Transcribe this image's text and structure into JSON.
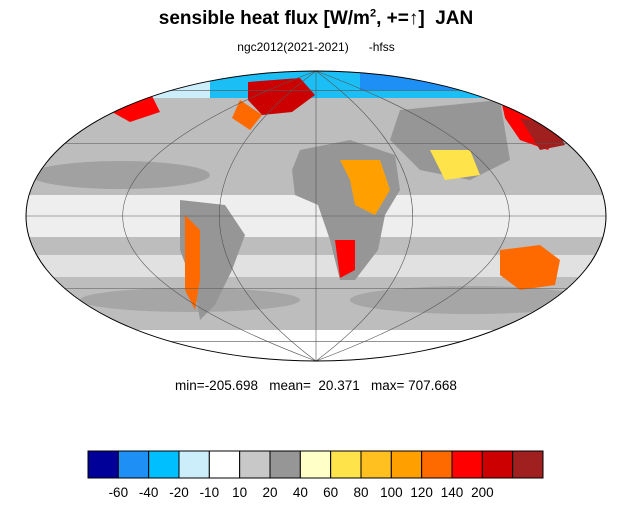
{
  "title": {
    "main": "sensible heat flux [W/m",
    "superscript": "2",
    "suffix": ", +=",
    "arrow": "↑",
    "close": "]",
    "month": "JAN"
  },
  "subtitle": {
    "case": "ngc2012(2021-2021)",
    "variable": "-hfss"
  },
  "stats": {
    "min_label": "min=",
    "min": "-205.698",
    "mean_label": "mean=",
    "mean": "20.371",
    "max_label": "max=",
    "max": "707.668"
  },
  "map": {
    "projection": "mollweide",
    "ocean_fill": "#b8b8b8",
    "gridline_color": "#555555",
    "coastline_color": "#000000"
  },
  "colorbar": {
    "colors": [
      "#000099",
      "#1e8ff5",
      "#00bfff",
      "#cceefa",
      "#ffffff",
      "#c8c8c8",
      "#969696",
      "#ffffc8",
      "#ffe34a",
      "#ffc020",
      "#ffa000",
      "#ff6a00",
      "#ff0000",
      "#cc0000",
      "#a02020"
    ],
    "labels": [
      "-60",
      "-40",
      "-20",
      "-10",
      "10",
      "20",
      "40",
      "60",
      "80",
      "100",
      "120",
      "140",
      "200"
    ]
  }
}
